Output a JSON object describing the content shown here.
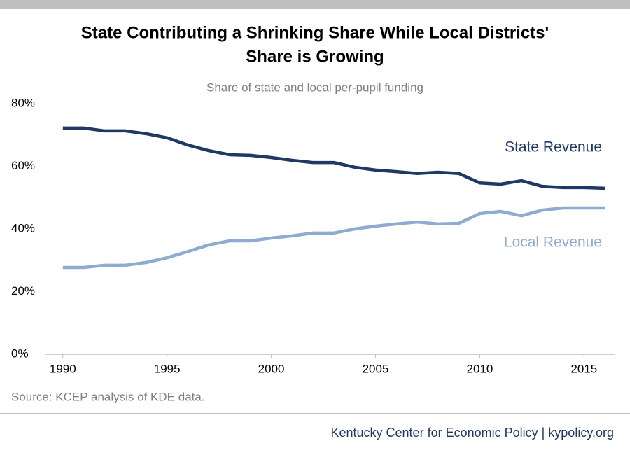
{
  "chart_data": {
    "type": "line",
    "title": [
      "State Contributing a Shrinking Share While Local Districts'",
      "Share is Growing"
    ],
    "subtitle": "Share of state and local per-pupil funding",
    "x": [
      1990,
      1991,
      1992,
      1993,
      1994,
      1995,
      1996,
      1997,
      1998,
      1999,
      2000,
      2001,
      2002,
      2003,
      2004,
      2005,
      2006,
      2007,
      2008,
      2009,
      2010,
      2011,
      2012,
      2013,
      2014,
      2015,
      2016
    ],
    "series": [
      {
        "name": "State Revenue",
        "color": "#1f3864",
        "values": [
          72.2,
          72.2,
          71.3,
          71.3,
          70.4,
          69.1,
          66.8,
          65.0,
          63.7,
          63.5,
          62.8,
          61.9,
          61.2,
          61.2,
          59.7,
          58.8,
          58.3,
          57.7,
          58.1,
          57.7,
          54.7,
          54.3,
          55.4,
          53.6,
          53.2,
          53.2,
          53.0
        ]
      },
      {
        "name": "Local Revenue",
        "color": "#8eacd0",
        "values": [
          27.7,
          27.7,
          28.4,
          28.4,
          29.3,
          30.8,
          32.8,
          34.9,
          36.2,
          36.2,
          37.1,
          37.8,
          38.7,
          38.7,
          40.0,
          40.9,
          41.6,
          42.2,
          41.6,
          41.8,
          44.9,
          45.6,
          44.2,
          46.0,
          46.7,
          46.7,
          46.7
        ]
      }
    ],
    "xlim": [
      1989,
      2016.5
    ],
    "xticks": [
      1990,
      1995,
      2000,
      2005,
      2010,
      2015
    ],
    "ylim": [
      0,
      80
    ],
    "yticks": [
      {
        "value": 0,
        "label": "0%"
      },
      {
        "value": 20,
        "label": "20%"
      },
      {
        "value": 40,
        "label": "40%"
      },
      {
        "value": 60,
        "label": "60%"
      },
      {
        "value": 80,
        "label": "80%"
      }
    ],
    "source": "Source: KCEP analysis of KDE data.",
    "footer": "Kentucky Center for Economic Policy | kypolicy.org"
  }
}
